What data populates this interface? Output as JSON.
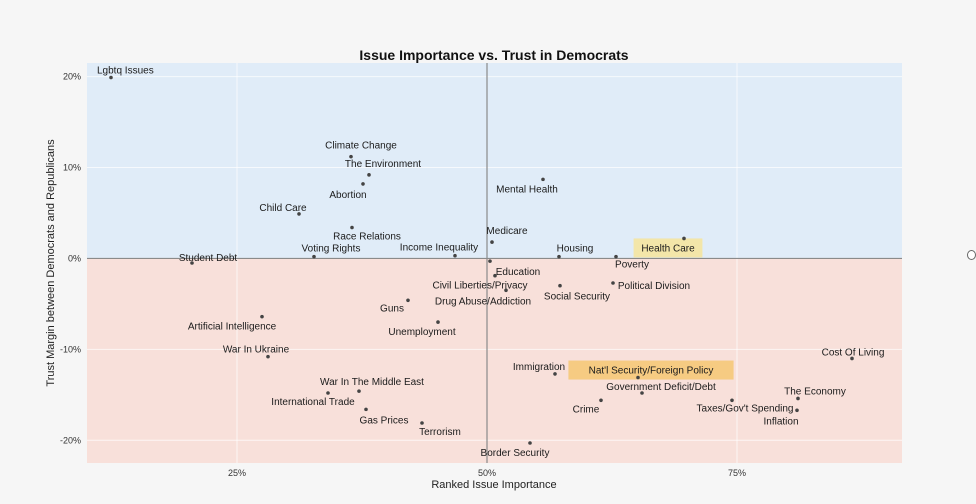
{
  "chart_data": {
    "type": "scatter",
    "title": "Issue Importance vs. Trust in Democrats",
    "xlabel": "Ranked Issue Importance",
    "ylabel": "Trust Margin between Democrats and Republicans",
    "xlim": [
      0.1,
      0.915
    ],
    "ylim": [
      -0.225,
      0.215
    ],
    "xticks": [
      {
        "value": 0.25,
        "label": "25%"
      },
      {
        "value": 0.5,
        "label": "50%"
      },
      {
        "value": 0.75,
        "label": "75%"
      }
    ],
    "yticks": [
      {
        "value": 0.2,
        "label": "20%"
      },
      {
        "value": 0.1,
        "label": "10%"
      },
      {
        "value": 0.0,
        "label": "0%"
      },
      {
        "value": -0.1,
        "label": "-10%"
      },
      {
        "value": -0.2,
        "label": "-20%"
      }
    ],
    "grid": true,
    "region_colors": {
      "positive": "#e0ecf8",
      "negative": "#f8e0da"
    },
    "highlight_color": "#f5e6a0",
    "highlight_alt_color": "#f5c978",
    "points": [
      {
        "label": "Lgbtq Issues",
        "x": 0.124,
        "y": 0.199
      },
      {
        "label": "Climate Change",
        "x": 0.364,
        "y": 0.112
      },
      {
        "label": "The Environment",
        "x": 0.382,
        "y": 0.092
      },
      {
        "label": "Abortion",
        "x": 0.376,
        "y": 0.082
      },
      {
        "label": "Child Care",
        "x": 0.312,
        "y": 0.049
      },
      {
        "label": "Race Relations",
        "x": 0.365,
        "y": 0.034
      },
      {
        "label": "Student Debt",
        "x": 0.205,
        "y": -0.005
      },
      {
        "label": "Voting Rights",
        "x": 0.327,
        "y": 0.002
      },
      {
        "label": "Income Inequality",
        "x": 0.468,
        "y": 0.003
      },
      {
        "label": "Medicare",
        "x": 0.505,
        "y": 0.018
      },
      {
        "label": "Mental Health",
        "x": 0.556,
        "y": 0.087
      },
      {
        "label": "Housing",
        "x": 0.572,
        "y": 0.002
      },
      {
        "label": "Health Care",
        "x": 0.697,
        "y": 0.022,
        "highlight": "yellow"
      },
      {
        "label": "Poverty",
        "x": 0.629,
        "y": 0.002
      },
      {
        "label": "Education",
        "x": 0.503,
        "y": -0.003
      },
      {
        "label": "Political Division",
        "x": 0.626,
        "y": -0.027
      },
      {
        "label": "Civil Liberties/Privacy",
        "x": 0.508,
        "y": -0.019
      },
      {
        "label": "Social Security",
        "x": 0.573,
        "y": -0.03
      },
      {
        "label": "Drug Abuse/Addiction",
        "x": 0.519,
        "y": -0.035
      },
      {
        "label": "Guns",
        "x": 0.421,
        "y": -0.046
      },
      {
        "label": "Artificial Intelligence",
        "x": 0.275,
        "y": -0.064
      },
      {
        "label": "Unemployment",
        "x": 0.451,
        "y": -0.07
      },
      {
        "label": "War In Ukraine",
        "x": 0.281,
        "y": -0.108
      },
      {
        "label": "Immigration",
        "x": 0.568,
        "y": -0.127
      },
      {
        "label": "Nat'l Security/Foreign Policy",
        "x": 0.651,
        "y": -0.131,
        "highlight": "orange"
      },
      {
        "label": "Cost Of Living",
        "x": 0.865,
        "y": -0.11
      },
      {
        "label": "War In The Middle East",
        "x": 0.372,
        "y": -0.146
      },
      {
        "label": "International Trade",
        "x": 0.341,
        "y": -0.148
      },
      {
        "label": "Government Deficit/Debt",
        "x": 0.655,
        "y": -0.148
      },
      {
        "label": "The Economy",
        "x": 0.811,
        "y": -0.154
      },
      {
        "label": "Taxes/Gov't Spending",
        "x": 0.745,
        "y": -0.156
      },
      {
        "label": "Crime",
        "x": 0.614,
        "y": -0.156
      },
      {
        "label": "Inflation",
        "x": 0.81,
        "y": -0.167
      },
      {
        "label": "Gas Prices",
        "x": 0.379,
        "y": -0.166
      },
      {
        "label": "Terrorism",
        "x": 0.435,
        "y": -0.181
      },
      {
        "label": "Border Security",
        "x": 0.543,
        "y": -0.203
      }
    ]
  }
}
